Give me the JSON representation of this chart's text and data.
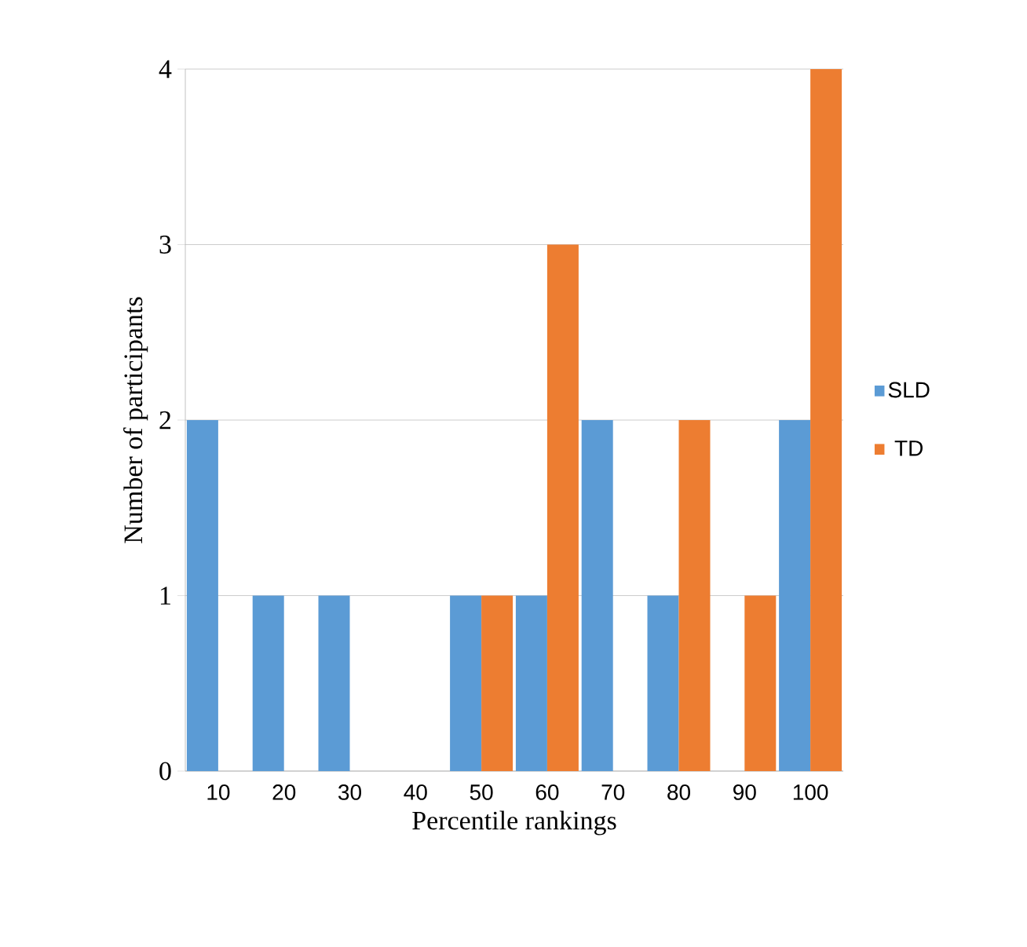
{
  "chart_data": {
    "type": "bar",
    "xlabel": "Percentile rankings",
    "ylabel": "Number of participants",
    "categories": [
      "10",
      "20",
      "30",
      "40",
      "50",
      "60",
      "70",
      "80",
      "90",
      "100"
    ],
    "series": [
      {
        "name": "SLD",
        "color": "#5b9bd5",
        "values": [
          2,
          1,
          1,
          0,
          1,
          1,
          2,
          1,
          0,
          2
        ]
      },
      {
        "name": "TD",
        "color": "#ed7d31",
        "values": [
          0,
          0,
          0,
          0,
          1,
          3,
          0,
          2,
          1,
          4
        ]
      }
    ],
    "ylim": [
      0,
      4
    ],
    "yticks": [
      0,
      1,
      2,
      3,
      4
    ],
    "grid": "y",
    "legend": "right"
  }
}
